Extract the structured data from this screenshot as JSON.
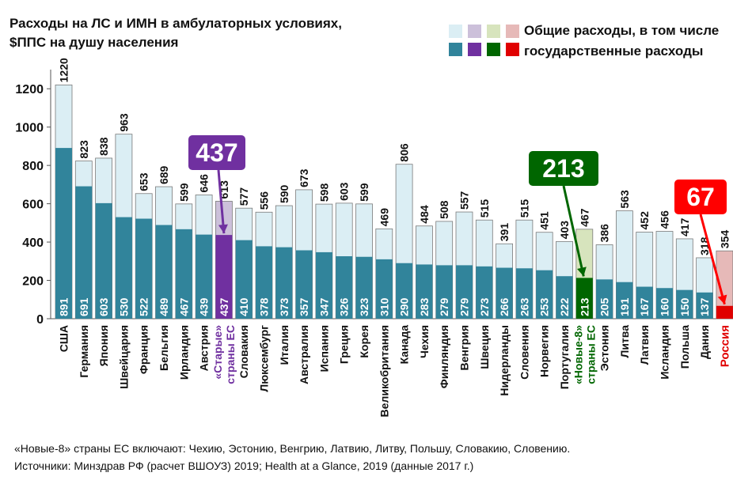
{
  "title_line1": "Расходы на ЛС и ИМН в амбулаторных условиях,",
  "title_line2": "$ППС на душу населения",
  "legend": {
    "line1": "Общие расходы, в том числе",
    "line2": "государственные расходы"
  },
  "colors": {
    "default_total": "#dbeef4",
    "default_gov": "#31849b",
    "old_total": "#ccc0da",
    "old_gov": "#7030a0",
    "new_total": "#d7e4bd",
    "new_gov": "#006600",
    "russia_total": "#e6b9b8",
    "russia_gov": "#e00000",
    "callout_old": "#7030a0",
    "callout_new": "#006600",
    "callout_russia": "#ff0000"
  },
  "callouts": {
    "old": "437",
    "new": "213",
    "russia": "67"
  },
  "footer_line1": "«Новые-8» страны ЕС включают: Чехию, Эстонию, Венгрию, Латвию, Литву, Польшу, Словакию, Словению.",
  "footer_line2": "Источники: Минздрав РФ (расчет ВШОУЗ) 2019;  Health at a Glance, 2019 (данные 2017 г.)",
  "chart_data": {
    "type": "bar",
    "title": "Расходы на ЛС и ИМН в амбулаторных условиях, $ППС на душу населения",
    "ylim": [
      0,
      1300
    ],
    "yticks": [
      0,
      200,
      400,
      600,
      800,
      1000,
      1200
    ],
    "grid": false,
    "legend_position": "top-right",
    "categories": [
      {
        "label": "США",
        "group": "default"
      },
      {
        "label": "Германия",
        "group": "default"
      },
      {
        "label": "Япония",
        "group": "default"
      },
      {
        "label": "Швейцария",
        "group": "default"
      },
      {
        "label": "Франция",
        "group": "default"
      },
      {
        "label": "Бельгия",
        "group": "default"
      },
      {
        "label": "Ирландия",
        "group": "default"
      },
      {
        "label": "Австрия",
        "group": "default"
      },
      {
        "label": "«Старые» страны ЕС",
        "group": "old"
      },
      {
        "label": "Словакия",
        "group": "default"
      },
      {
        "label": "Люксембург",
        "group": "default"
      },
      {
        "label": "Италия",
        "group": "default"
      },
      {
        "label": "Австралия",
        "group": "default"
      },
      {
        "label": "Испания",
        "group": "default"
      },
      {
        "label": "Греция",
        "group": "default"
      },
      {
        "label": "Корея",
        "group": "default"
      },
      {
        "label": "Великобритания",
        "group": "default"
      },
      {
        "label": "Канада",
        "group": "default"
      },
      {
        "label": "Чехия",
        "group": "default"
      },
      {
        "label": "Финляндия",
        "group": "default"
      },
      {
        "label": "Венгрия",
        "group": "default"
      },
      {
        "label": "Швеция",
        "group": "default"
      },
      {
        "label": "Нидерланды",
        "group": "default"
      },
      {
        "label": "Словения",
        "group": "default"
      },
      {
        "label": "Норвегия",
        "group": "default"
      },
      {
        "label": "Португалия",
        "group": "default"
      },
      {
        "label": "«Новые-8» страны ЕС",
        "group": "new"
      },
      {
        "label": "Эстония",
        "group": "default"
      },
      {
        "label": "Литва",
        "group": "default"
      },
      {
        "label": "Латвия",
        "group": "default"
      },
      {
        "label": "Исландия",
        "group": "default"
      },
      {
        "label": "Польша",
        "group": "default"
      },
      {
        "label": "Дания",
        "group": "default"
      },
      {
        "label": "Россия",
        "group": "russia"
      }
    ],
    "series": [
      {
        "name": "Общие расходы",
        "values": [
          1220,
          823,
          838,
          963,
          653,
          689,
          599,
          646,
          613,
          577,
          556,
          590,
          673,
          598,
          603,
          599,
          469,
          806,
          484,
          508,
          557,
          515,
          391,
          515,
          451,
          403,
          467,
          386,
          563,
          452,
          456,
          417,
          318,
          354
        ]
      },
      {
        "name": "Государственные расходы",
        "values": [
          891,
          691,
          603,
          530,
          522,
          489,
          467,
          439,
          437,
          410,
          378,
          373,
          357,
          347,
          326,
          323,
          310,
          290,
          283,
          279,
          279,
          273,
          266,
          263,
          253,
          222,
          213,
          205,
          191,
          167,
          160,
          150,
          137,
          67
        ]
      }
    ],
    "gov_labels": [
      "891",
      "691",
      "603",
      "530",
      "522",
      "489",
      "467",
      "439",
      "437",
      "410",
      "378",
      "373",
      "357",
      "347",
      "326",
      "323",
      "310",
      "290",
      "283",
      "279",
      "279",
      "273",
      "266",
      "263",
      "253",
      "222",
      "213",
      "205",
      "191",
      "167",
      "160",
      "150",
      "137",
      ""
    ]
  }
}
